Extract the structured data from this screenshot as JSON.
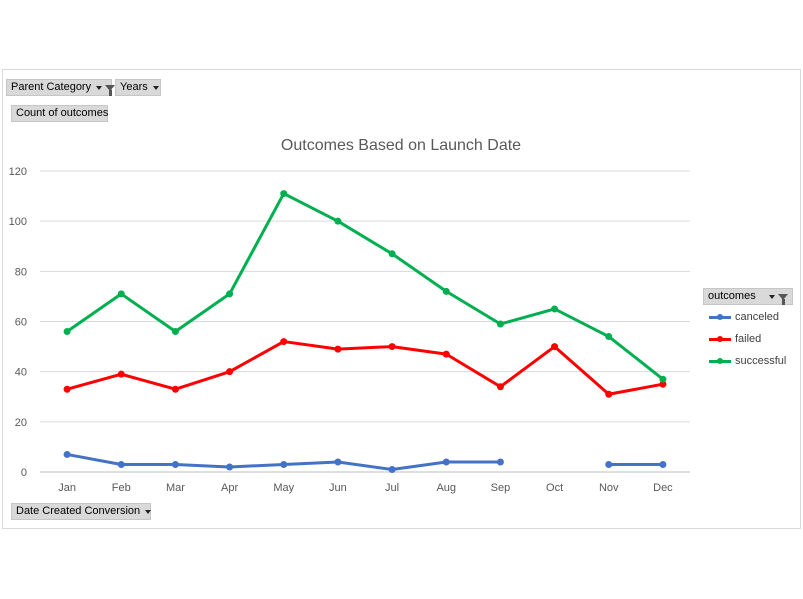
{
  "filters": {
    "parent_category": "Parent Category",
    "years": "Years",
    "value_field": "Count of outcomes",
    "axis_field": "Date Created Conversion",
    "legend_field": "outcomes"
  },
  "chart_data": {
    "type": "line",
    "title": "Outcomes Based on Launch Date",
    "xlabel": "",
    "ylabel": "",
    "categories": [
      "Jan",
      "Feb",
      "Mar",
      "Apr",
      "May",
      "Jun",
      "Jul",
      "Aug",
      "Sep",
      "Oct",
      "Nov",
      "Dec"
    ],
    "ylim": [
      0,
      120
    ],
    "yticks": [
      0,
      20,
      40,
      60,
      80,
      100,
      120
    ],
    "grid": true,
    "legend_position": "right",
    "series": [
      {
        "name": "canceled",
        "color": "#4472c4",
        "values": [
          7,
          3,
          3,
          2,
          3,
          4,
          1,
          4,
          4,
          null,
          3,
          3
        ]
      },
      {
        "name": "failed",
        "color": "#ff0000",
        "values": [
          33,
          39,
          33,
          40,
          52,
          49,
          50,
          47,
          34,
          50,
          31,
          35
        ]
      },
      {
        "name": "successful",
        "color": "#00b050",
        "values": [
          56,
          71,
          56,
          71,
          111,
          100,
          87,
          72,
          59,
          65,
          54,
          37
        ]
      }
    ]
  }
}
